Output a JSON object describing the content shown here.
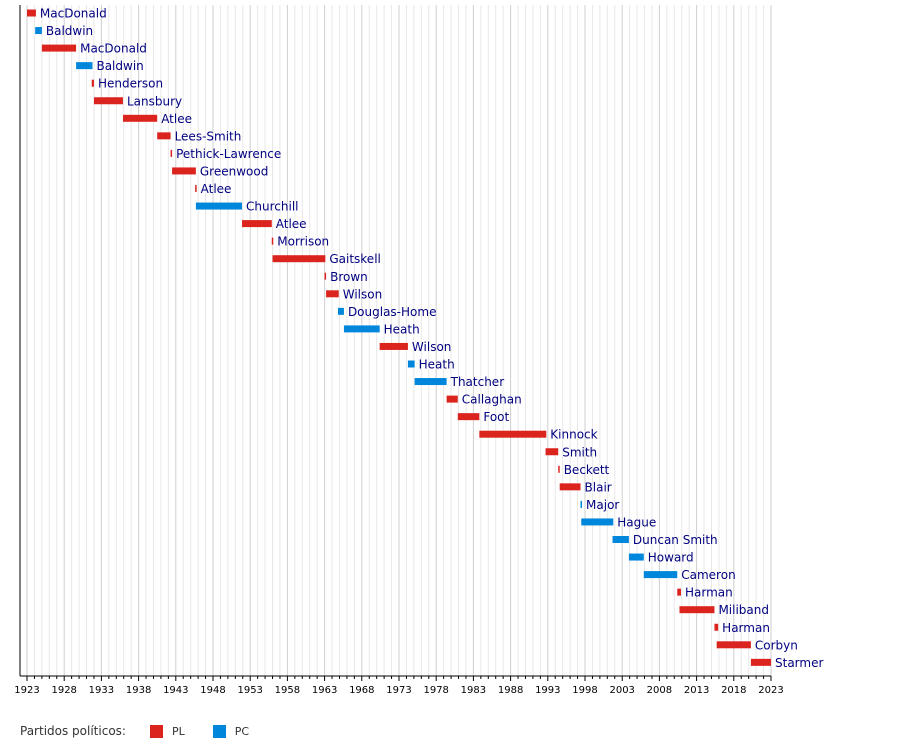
{
  "chart_data": {
    "type": "timeline",
    "x_ticks": [
      1923,
      1928,
      1933,
      1938,
      1943,
      1948,
      1953,
      1958,
      1963,
      1968,
      1973,
      1978,
      1983,
      1988,
      1993,
      1998,
      2003,
      2008,
      2013,
      2018,
      2023
    ],
    "xlim": [
      1923,
      2023
    ],
    "grid": true,
    "colors": {
      "PL": "#dc241f",
      "PC": "#0087dc"
    },
    "bars": [
      {
        "label": "MacDonald",
        "party": "PL",
        "start": 1923.0,
        "end": 1924.2
      },
      {
        "label": "Baldwin",
        "party": "PC",
        "start": 1924.1,
        "end": 1925.0
      },
      {
        "label": "MacDonald",
        "party": "PL",
        "start": 1925.0,
        "end": 1929.6
      },
      {
        "label": "Baldwin",
        "party": "PC",
        "start": 1929.6,
        "end": 1931.8
      },
      {
        "label": "Henderson",
        "party": "PL",
        "start": 1931.7,
        "end": 1932.0
      },
      {
        "label": "Lansbury",
        "party": "PL",
        "start": 1932.0,
        "end": 1935.9
      },
      {
        "label": "Atlee",
        "party": "PL",
        "start": 1935.9,
        "end": 1940.5
      },
      {
        "label": "Lees-Smith",
        "party": "PL",
        "start": 1940.5,
        "end": 1942.3
      },
      {
        "label": "Pethick-Lawrence",
        "party": "PL",
        "start": 1942.3,
        "end": 1942.5
      },
      {
        "label": "Greenwood",
        "party": "PL",
        "start": 1942.5,
        "end": 1945.7
      },
      {
        "label": "Atlee",
        "party": "PL",
        "start": 1945.6,
        "end": 1945.8
      },
      {
        "label": "Churchill",
        "party": "PC",
        "start": 1945.7,
        "end": 1951.9
      },
      {
        "label": "Atlee",
        "party": "PL",
        "start": 1951.9,
        "end": 1955.9
      },
      {
        "label": "Morrison",
        "party": "PL",
        "start": 1955.9,
        "end": 1956.1
      },
      {
        "label": "Gaitskell",
        "party": "PL",
        "start": 1956.0,
        "end": 1963.1
      },
      {
        "label": "Brown",
        "party": "PL",
        "start": 1963.0,
        "end": 1963.2
      },
      {
        "label": "Wilson",
        "party": "PL",
        "start": 1963.2,
        "end": 1964.9
      },
      {
        "label": "Douglas-Home",
        "party": "PC",
        "start": 1964.8,
        "end": 1965.6
      },
      {
        "label": "Heath",
        "party": "PC",
        "start": 1965.6,
        "end": 1970.4
      },
      {
        "label": "Wilson",
        "party": "PL",
        "start": 1970.4,
        "end": 1974.2
      },
      {
        "label": "Heath",
        "party": "PC",
        "start": 1974.2,
        "end": 1975.1
      },
      {
        "label": "Thatcher",
        "party": "PC",
        "start": 1975.1,
        "end": 1979.4
      },
      {
        "label": "Callaghan",
        "party": "PL",
        "start": 1979.4,
        "end": 1980.9
      },
      {
        "label": "Foot",
        "party": "PL",
        "start": 1980.9,
        "end": 1983.8
      },
      {
        "label": "Kinnock",
        "party": "PL",
        "start": 1983.8,
        "end": 1992.8
      },
      {
        "label": "Smith",
        "party": "PL",
        "start": 1992.7,
        "end": 1994.4
      },
      {
        "label": "Beckett",
        "party": "PL",
        "start": 1994.4,
        "end": 1994.6
      },
      {
        "label": "Blair",
        "party": "PL",
        "start": 1994.6,
        "end": 1997.4
      },
      {
        "label": "Major",
        "party": "PC",
        "start": 1997.4,
        "end": 1997.6
      },
      {
        "label": "Hague",
        "party": "PC",
        "start": 1997.5,
        "end": 2001.8
      },
      {
        "label": "Duncan Smith",
        "party": "PC",
        "start": 2001.7,
        "end": 2003.9
      },
      {
        "label": "Howard",
        "party": "PC",
        "start": 2003.9,
        "end": 2005.9
      },
      {
        "label": "Cameron",
        "party": "PC",
        "start": 2005.9,
        "end": 2010.4
      },
      {
        "label": "Harman",
        "party": "PL",
        "start": 2010.4,
        "end": 2010.9
      },
      {
        "label": "Miliband",
        "party": "PL",
        "start": 2010.7,
        "end": 2015.4
      },
      {
        "label": "Harman",
        "party": "PL",
        "start": 2015.4,
        "end": 2015.9
      },
      {
        "label": "Corbyn",
        "party": "PL",
        "start": 2015.7,
        "end": 2020.3
      },
      {
        "label": "Starmer",
        "party": "PL",
        "start": 2020.3,
        "end": 2023.0
      }
    ]
  },
  "legend": {
    "title": "Partidos políticos:",
    "items": [
      {
        "key": "PL",
        "label": "PL",
        "color": "#dc241f"
      },
      {
        "key": "PC",
        "label": "PC",
        "color": "#0087dc"
      }
    ]
  }
}
